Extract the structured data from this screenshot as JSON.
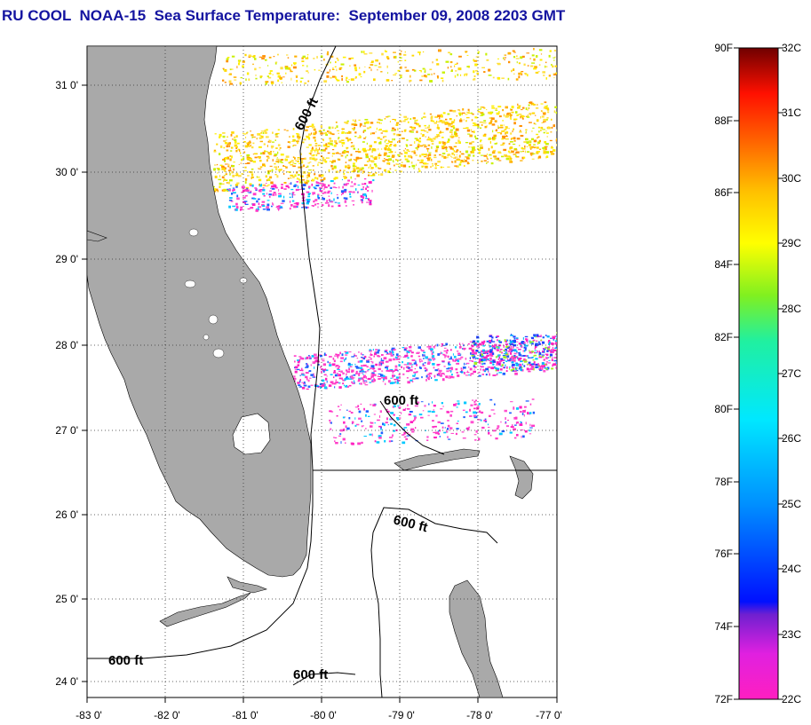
{
  "title": "RU COOL  NOAA-15  Sea Surface Temperature:  September 09, 2008 2203 GMT",
  "map": {
    "y_ticks": [
      "31 0'",
      "30 0'",
      "29 0'",
      "28 0'",
      "27 0'",
      "26 0'",
      "25 0'",
      "24 0'"
    ],
    "x_ticks": [
      "-83 0'",
      "-82 0'",
      "-81 0'",
      "-80 0'",
      "-79 0'",
      "-78 0'",
      "-77 0'"
    ],
    "contour_labels": [
      "600 ft",
      "600 ft",
      "600 ft",
      "600 ft",
      "600 ft"
    ],
    "land_color": "#a9a9a9"
  },
  "colorbar": {
    "f_labels": [
      "90F",
      "88F",
      "86F",
      "84F",
      "82F",
      "80F",
      "78F",
      "76F",
      "74F",
      "72F"
    ],
    "c_labels": [
      "32C",
      "31C",
      "30C",
      "29C",
      "28C",
      "27C",
      "26C",
      "25C",
      "24C",
      "23C",
      "22C"
    ]
  }
}
